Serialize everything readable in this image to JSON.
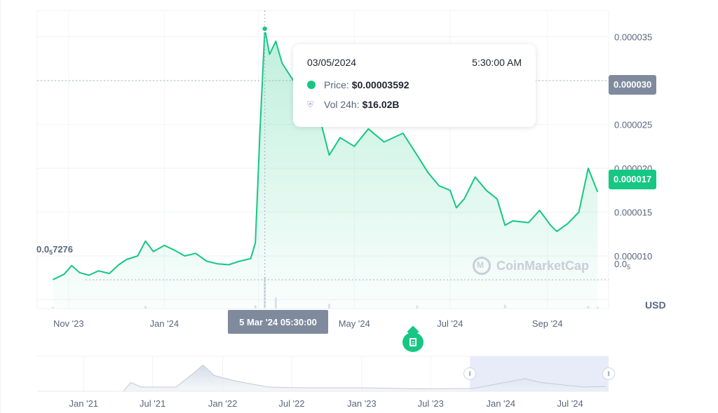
{
  "chart_data": {
    "type": "area",
    "title": "",
    "xlabel": "",
    "ylabel": "",
    "currency_label": "USD",
    "y_ticks": [
      "0.000035",
      "0.000030",
      "0.000025",
      "0.000020",
      "0.000015",
      "0.000010"
    ],
    "y_tick_values": [
      3.5e-05,
      3e-05,
      2.5e-05,
      2e-05,
      1.5e-05,
      1e-05
    ],
    "y_subscript_tick": {
      "prefix": "0.0",
      "sub": "5",
      "suffix": ""
    },
    "x_ticks": [
      "Nov '23",
      "Jan '24",
      "Mar '24",
      "May '24",
      "Jul '24",
      "Sep '24"
    ],
    "x_tick_dates": [
      "2023-11-01",
      "2024-01-01",
      "2024-03-01",
      "2024-05-01",
      "2024-07-01",
      "2024-09-01"
    ],
    "ylim": [
      4e-06,
      3.8e-05
    ],
    "xlim": [
      "2023-10-12",
      "2024-10-10"
    ],
    "series": [
      {
        "values": [
          [
            "2023-10-22",
            7.3e-06
          ],
          [
            "2023-10-29",
            7.9e-06
          ],
          [
            "2023-11-03",
            8.9e-06
          ],
          [
            "2023-11-08",
            8.1e-06
          ],
          [
            "2023-11-14",
            7.8e-06
          ],
          [
            "2023-11-20",
            8.3e-06
          ],
          [
            "2023-11-27",
            8e-06
          ],
          [
            "2023-12-03",
            9e-06
          ],
          [
            "2023-12-08",
            9.6e-06
          ],
          [
            "2023-12-15",
            1e-05
          ],
          [
            "2023-12-20",
            1.17e-05
          ],
          [
            "2023-12-25",
            1.05e-05
          ],
          [
            "2024-01-01",
            1.12e-05
          ],
          [
            "2024-01-07",
            1.07e-05
          ],
          [
            "2024-01-14",
            1e-05
          ],
          [
            "2024-01-21",
            1.03e-05
          ],
          [
            "2024-01-28",
            9.4e-06
          ],
          [
            "2024-02-04",
            9.1e-06
          ],
          [
            "2024-02-11",
            9e-06
          ],
          [
            "2024-02-18",
            9.4e-06
          ],
          [
            "2024-02-25",
            9.7e-06
          ],
          [
            "2024-02-28",
            1.15e-05
          ],
          [
            "2024-03-02",
            2.45e-05
          ],
          [
            "2024-03-05",
            3.592e-05
          ],
          [
            "2024-03-08",
            3.3e-05
          ],
          [
            "2024-03-12",
            3.45e-05
          ],
          [
            "2024-03-16",
            3.2e-05
          ],
          [
            "2024-04-10",
            2.5e-05
          ],
          [
            "2024-04-15",
            2.15e-05
          ],
          [
            "2024-04-22",
            2.35e-05
          ],
          [
            "2024-05-01",
            2.25e-05
          ],
          [
            "2024-05-10",
            2.45e-05
          ],
          [
            "2024-05-20",
            2.3e-05
          ],
          [
            "2024-06-01",
            2.4e-05
          ],
          [
            "2024-06-10",
            2.15e-05
          ],
          [
            "2024-06-17",
            1.95e-05
          ],
          [
            "2024-06-24",
            1.8e-05
          ],
          [
            "2024-07-01",
            1.75e-05
          ],
          [
            "2024-07-05",
            1.55e-05
          ],
          [
            "2024-07-10",
            1.65e-05
          ],
          [
            "2024-07-17",
            1.9e-05
          ],
          [
            "2024-07-24",
            1.75e-05
          ],
          [
            "2024-07-31",
            1.65e-05
          ],
          [
            "2024-08-05",
            1.35e-05
          ],
          [
            "2024-08-10",
            1.4e-05
          ],
          [
            "2024-08-20",
            1.38e-05
          ],
          [
            "2024-08-27",
            1.52e-05
          ],
          [
            "2024-09-03",
            1.35e-05
          ],
          [
            "2024-09-07",
            1.28e-05
          ],
          [
            "2024-09-14",
            1.37e-05
          ],
          [
            "2024-09-21",
            1.5e-05
          ],
          [
            "2024-09-27",
            2e-05
          ],
          [
            "2024-10-03",
            1.73e-05
          ]
        ]
      }
    ],
    "volume_series": [
      [
        "2023-10-22",
        0.05
      ],
      [
        "2023-12-20",
        0.08
      ],
      [
        "2024-02-28",
        0.1
      ],
      [
        "2024-03-05",
        1.0
      ],
      [
        "2024-03-12",
        0.35
      ],
      [
        "2024-04-15",
        0.15
      ],
      [
        "2024-06-10",
        0.1
      ],
      [
        "2024-08-05",
        0.12
      ],
      [
        "2024-09-27",
        0.08
      ],
      [
        "2024-10-03",
        0.05
      ]
    ],
    "grid": true,
    "legend": "none"
  },
  "tooltip": {
    "date": "03/05/2024",
    "time": "5:30:00 AM",
    "price_label": "Price:",
    "price_value": "$0.00003592",
    "vol_label": "Vol 24h:",
    "vol_value": "$16.02B",
    "price_color": "#16c784"
  },
  "crosshair": {
    "date": "2024-03-05",
    "label": "5 Mar '24 05:30:00",
    "price_tag": "0.000030",
    "price_tag_value": 3e-05
  },
  "current_price_tag": "0.000017",
  "current_price_value": 1.7e-05,
  "low_label": {
    "prefix": "0.0",
    "sub": "5",
    "suffix": "7276"
  },
  "low_value": 7.276e-06,
  "watermark": "CoinMarketCap",
  "navigator": {
    "x_ticks": [
      "Jan '21",
      "Jul '21",
      "Jan '22",
      "Jul '22",
      "Jan '23",
      "Jul '23",
      "Jan '24",
      "Jul '24"
    ],
    "x_tick_dates": [
      "2021-01-01",
      "2021-07-01",
      "2022-01-01",
      "2022-07-01",
      "2023-01-01",
      "2023-07-01",
      "2024-01-01",
      "2024-07-01"
    ],
    "xlim": [
      "2020-09-01",
      "2024-10-10"
    ],
    "selection": [
      "2023-10-12",
      "2024-10-10"
    ],
    "values": [
      [
        "2020-09-01",
        0.0
      ],
      [
        "2021-04-15",
        0.0
      ],
      [
        "2021-05-05",
        0.25
      ],
      [
        "2021-06-01",
        0.12
      ],
      [
        "2021-09-01",
        0.12
      ],
      [
        "2021-10-20",
        0.55
      ],
      [
        "2021-11-10",
        0.75
      ],
      [
        "2021-12-10",
        0.45
      ],
      [
        "2022-02-01",
        0.3
      ],
      [
        "2022-05-01",
        0.12
      ],
      [
        "2022-08-01",
        0.1
      ],
      [
        "2023-01-01",
        0.1
      ],
      [
        "2023-06-01",
        0.07
      ],
      [
        "2023-10-20",
        0.08
      ],
      [
        "2024-03-05",
        0.36
      ],
      [
        "2024-04-15",
        0.25
      ],
      [
        "2024-08-05",
        0.12
      ],
      [
        "2024-10-03",
        0.14
      ]
    ]
  },
  "colors": {
    "accent": "#16c784",
    "grey_tag": "#808a9d",
    "grid": "#eff2f5",
    "selection": "#e5eaf8"
  }
}
